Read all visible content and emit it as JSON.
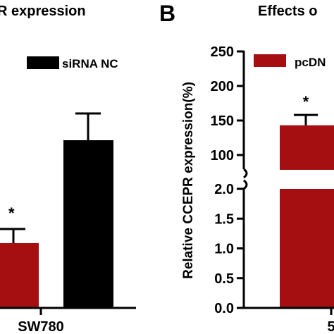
{
  "colors": {
    "red": "#a50f12",
    "black": "#000000",
    "axis": "#000000"
  },
  "panel_a": {
    "title_fragment": "R expression",
    "legend_label": "siRNA NC",
    "xtick_label": "SW780",
    "significance": "*"
  },
  "panel_b": {
    "panel_letter": "B",
    "title_fragment": "Effects o",
    "ylabel": "Relative CCEPR expression(%)",
    "legend_label": "pcDN",
    "xtick_label": "5",
    "significance": "*",
    "upper_ticks": [
      "100",
      "150",
      "200",
      "250"
    ],
    "lower_ticks": [
      "0.0",
      "0.5",
      "1.0",
      "1.5",
      "2.0"
    ]
  },
  "chart_data": [
    {
      "type": "bar",
      "title": "R expression",
      "categories": [
        "SW780"
      ],
      "series": [
        {
          "name": "",
          "color": "#a50f12",
          "values": [
            null
          ],
          "error": [
            null
          ]
        },
        {
          "name": "siRNA NC",
          "color": "#000000",
          "values": [
            null
          ],
          "error": [
            null
          ]
        }
      ],
      "annotations": [
        "*"
      ]
    },
    {
      "type": "bar",
      "title": "Effects o",
      "ylabel": "Relative CCEPR expression(%)",
      "categories": [
        "5"
      ],
      "axis_break": [
        2.0,
        100
      ],
      "lower_ylim": [
        0,
        2.0
      ],
      "upper_ylim": [
        100,
        250
      ],
      "upper_ticks": [
        100,
        150,
        200,
        250
      ],
      "lower_ticks": [
        0.0,
        0.5,
        1.0,
        1.5,
        2.0
      ],
      "series": [
        {
          "name": "pcDN",
          "color": "#a50f12",
          "values": [
            143
          ],
          "error": [
            15
          ]
        }
      ],
      "annotations": [
        "*"
      ]
    }
  ]
}
